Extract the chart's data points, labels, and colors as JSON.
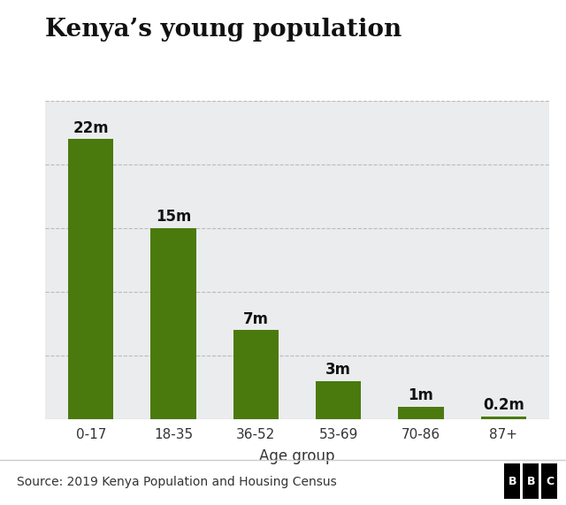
{
  "title": "Kenya’s young population",
  "categories": [
    "0-17",
    "18-35",
    "36-52",
    "53-69",
    "70-86",
    "87+"
  ],
  "values": [
    22,
    15,
    7,
    3,
    1,
    0.2
  ],
  "labels": [
    "22m",
    "15m",
    "7m",
    "3m",
    "1m",
    "0.2m"
  ],
  "bar_color": "#4a7a0e",
  "background_color": "#ffffff",
  "plot_bg_color": "#eaecee",
  "xlabel": "Age group",
  "ylim": [
    0,
    25
  ],
  "source_text": "Source: 2019 Kenya Population and Housing Census",
  "bbc_text": "BBC",
  "title_fontsize": 20,
  "label_fontsize": 12,
  "tick_fontsize": 11,
  "xlabel_fontsize": 12,
  "source_fontsize": 10,
  "grid_color": "#bbbbbb",
  "footer_bg_color": "#ffffff",
  "footer_line_color": "#cccccc",
  "bar_width": 0.55
}
